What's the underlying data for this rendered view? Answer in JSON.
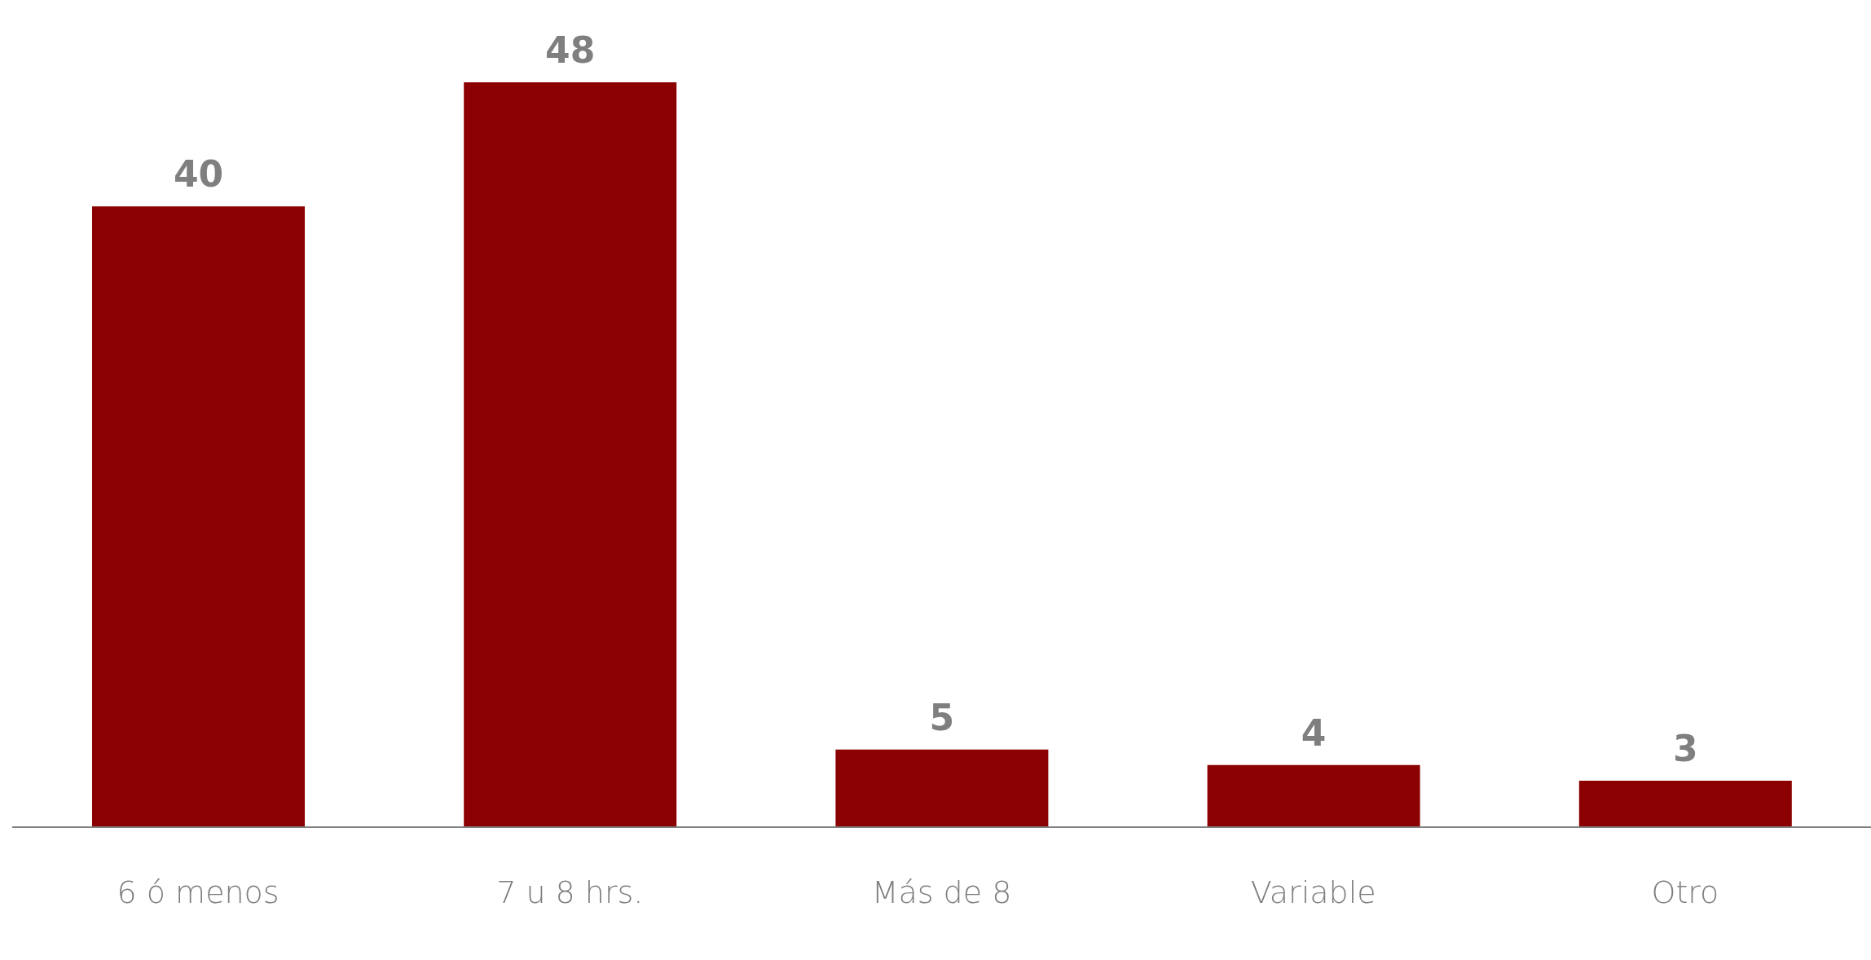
{
  "chart_data": {
    "type": "bar",
    "categories": [
      "6 ó menos",
      "7 u 8 hrs.",
      "Más de 8",
      "Variable",
      "Otro"
    ],
    "values": [
      40,
      48,
      5,
      4,
      3
    ],
    "color": "#8b0000",
    "data_labels": true,
    "grid": false,
    "legend": false
  }
}
